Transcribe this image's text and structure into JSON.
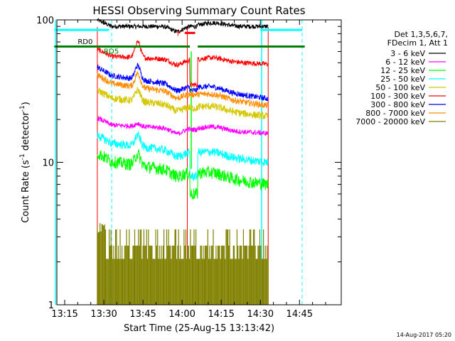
{
  "chart_data": {
    "type": "line",
    "title": "HESSI Observing Summary Count Rates",
    "xlabel": "Start Time (25-Aug-15 13:13:42)",
    "ylabel": "Count Rate (s⁻¹ detector⁻¹)",
    "ylabel_parts": {
      "base": "Count Rate (s",
      "sup1": "-1",
      "mid": " detector",
      "sup2": "-1",
      "end": ")"
    },
    "footer": "14-Aug-2017 05:20",
    "x_axis": {
      "min_minutes": 792,
      "max_minutes": 901,
      "ticks": [
        {
          "label": "13:15",
          "minutes": 795
        },
        {
          "label": "13:30",
          "minutes": 810
        },
        {
          "label": "13:45",
          "minutes": 825
        },
        {
          "label": "14:00",
          "minutes": 840
        },
        {
          "label": "14:15",
          "minutes": 855
        },
        {
          "label": "14:30",
          "minutes": 870
        },
        {
          "label": "14:45",
          "minutes": 885
        }
      ]
    },
    "y_axis": {
      "scale": "log",
      "min": 1,
      "max": 100,
      "ticks": [
        {
          "label": "1",
          "value": 1
        },
        {
          "label": "10",
          "value": 10
        },
        {
          "label": "100",
          "value": 100
        }
      ]
    },
    "legend": {
      "placement": "right",
      "header": [
        "Det 1,3,5,6,7,",
        "FDecim 1, Att 1"
      ],
      "entries": [
        {
          "label": "3 - 6 keV",
          "color": "#000000"
        },
        {
          "label": "6 - 12 keV",
          "color": "#ff00ff"
        },
        {
          "label": "12 - 25 keV",
          "color": "#00ff00"
        },
        {
          "label": "25 - 50 keV",
          "color": "#00ffff"
        },
        {
          "label": "50 - 100 keV",
          "color": "#d4c800"
        },
        {
          "label": "100 - 300 keV",
          "color": "#ff0000"
        },
        {
          "label": "300 - 800 keV",
          "color": "#0000ff"
        },
        {
          "label": "800 - 7000 keV",
          "color": "#ff8c00"
        },
        {
          "label": "7000 - 20000 keV",
          "color": "#808000"
        }
      ]
    },
    "data_start": 807.5,
    "data_end": 873,
    "gap": [
      843,
      846
    ],
    "series": [
      {
        "color": "#000000",
        "y0": 90,
        "y1": 90,
        "bump": 1.0,
        "noise": 0.035,
        "gap_y": 90
      },
      {
        "color": "#ff0000",
        "y0": 56,
        "y1": 49,
        "bump": 1.3,
        "noise": 0.04,
        "gap_y": 35
      },
      {
        "color": "#0000ff",
        "y0": 42,
        "y1": 28,
        "bump": 1.25,
        "noise": 0.045,
        "gap_y": 32
      },
      {
        "color": "#ff8c00",
        "y0": 37,
        "y1": 25,
        "bump": 1.25,
        "noise": 0.05,
        "gap_y": 30
      },
      {
        "color": "#d4c800",
        "y0": 29,
        "y1": 21,
        "bump": 1.2,
        "noise": 0.06,
        "gap_y": 24
      },
      {
        "color": "#ff00ff",
        "y0": 18.5,
        "y1": 16,
        "bump": 1.05,
        "noise": 0.04,
        "gap_y": 17
      },
      {
        "color": "#00ffff",
        "y0": 14,
        "y1": 10,
        "bump": 1.2,
        "noise": 0.07,
        "gap_y": 8
      },
      {
        "color": "#00ff00",
        "y0": 10.5,
        "y1": 7,
        "bump": 1.2,
        "noise": 0.1,
        "gap_y": 6
      }
    ],
    "high_energy": {
      "color": "#808000",
      "start": 807.5,
      "end": 873,
      "top": 4,
      "mid": 2.6,
      "low": 2.1,
      "base": 1
    },
    "annotations": {
      "rd0": {
        "label": "RD0",
        "x": 800,
        "y": 70
      },
      "rd5": {
        "label": "RD5",
        "x": 810,
        "y": 60
      },
      "flag": {
        "label": "F",
        "x": 838,
        "y": 80
      },
      "saa_bar_segments": [
        [
          791,
          812
        ],
        [
          870,
          886
        ]
      ],
      "saa_y": 85,
      "night_bar_segments": [
        [
          791,
          843
        ],
        [
          846,
          887
        ]
      ],
      "night_y": 65,
      "flare_bar": [
        841,
        845
      ],
      "flare_y": 81,
      "red_lines": [
        807.5,
        842,
        873
      ],
      "cyan_solid": [
        791.5,
        870.5
      ],
      "cyan_dashed": [
        813,
        886
      ],
      "green_line": 843.5
    }
  }
}
